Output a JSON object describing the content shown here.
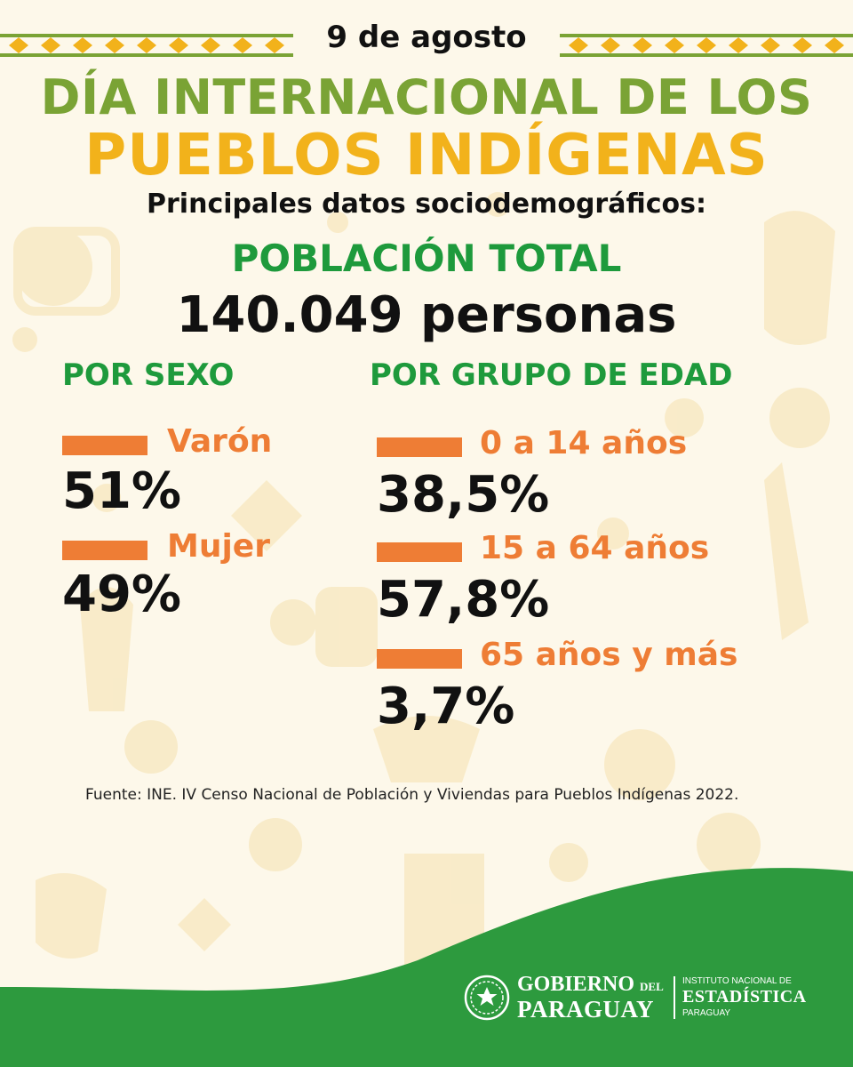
{
  "header": {
    "date": "9 de agosto",
    "title_line1": "DÍA INTERNACIONAL DE LOS",
    "title_line2": "PUEBLOS INDÍGENAS",
    "subtitle": "Principales datos sociodemográficos:"
  },
  "population": {
    "label": "POBLACIÓN TOTAL",
    "value": "140.049 personas"
  },
  "by_sex": {
    "heading": "POR SEXO",
    "items": [
      {
        "label": "Varón",
        "value": "51%"
      },
      {
        "label": "Mujer",
        "value": "49%"
      }
    ]
  },
  "by_age": {
    "heading": "POR GRUPO DE EDAD",
    "items": [
      {
        "label": "0 a 14 años",
        "value": "38,5%"
      },
      {
        "label": "15 a 64 años",
        "value": "57,8%"
      },
      {
        "label": "65 años y más",
        "value": "3,7%"
      }
    ]
  },
  "source": "Fuente:   INE. IV Censo Nacional de Población y Viviendas para Pueblos Indígenas 2022.",
  "footer": {
    "gov_line1": "GOBIERNO",
    "gov_del": "DEL",
    "gov_line2": "PARAGUAY",
    "ine_line1": "INSTITUTO NACIONAL DE",
    "ine_line2": "ESTADÍSTICA",
    "ine_line3": "PARAGUAY"
  },
  "colors": {
    "background": "#fdf8ea",
    "green_title": "#7aa335",
    "yellow_title": "#f2b21b",
    "green_heading": "#1e9a3c",
    "orange": "#ee7d35",
    "footer_green": "#2d9a3e"
  }
}
